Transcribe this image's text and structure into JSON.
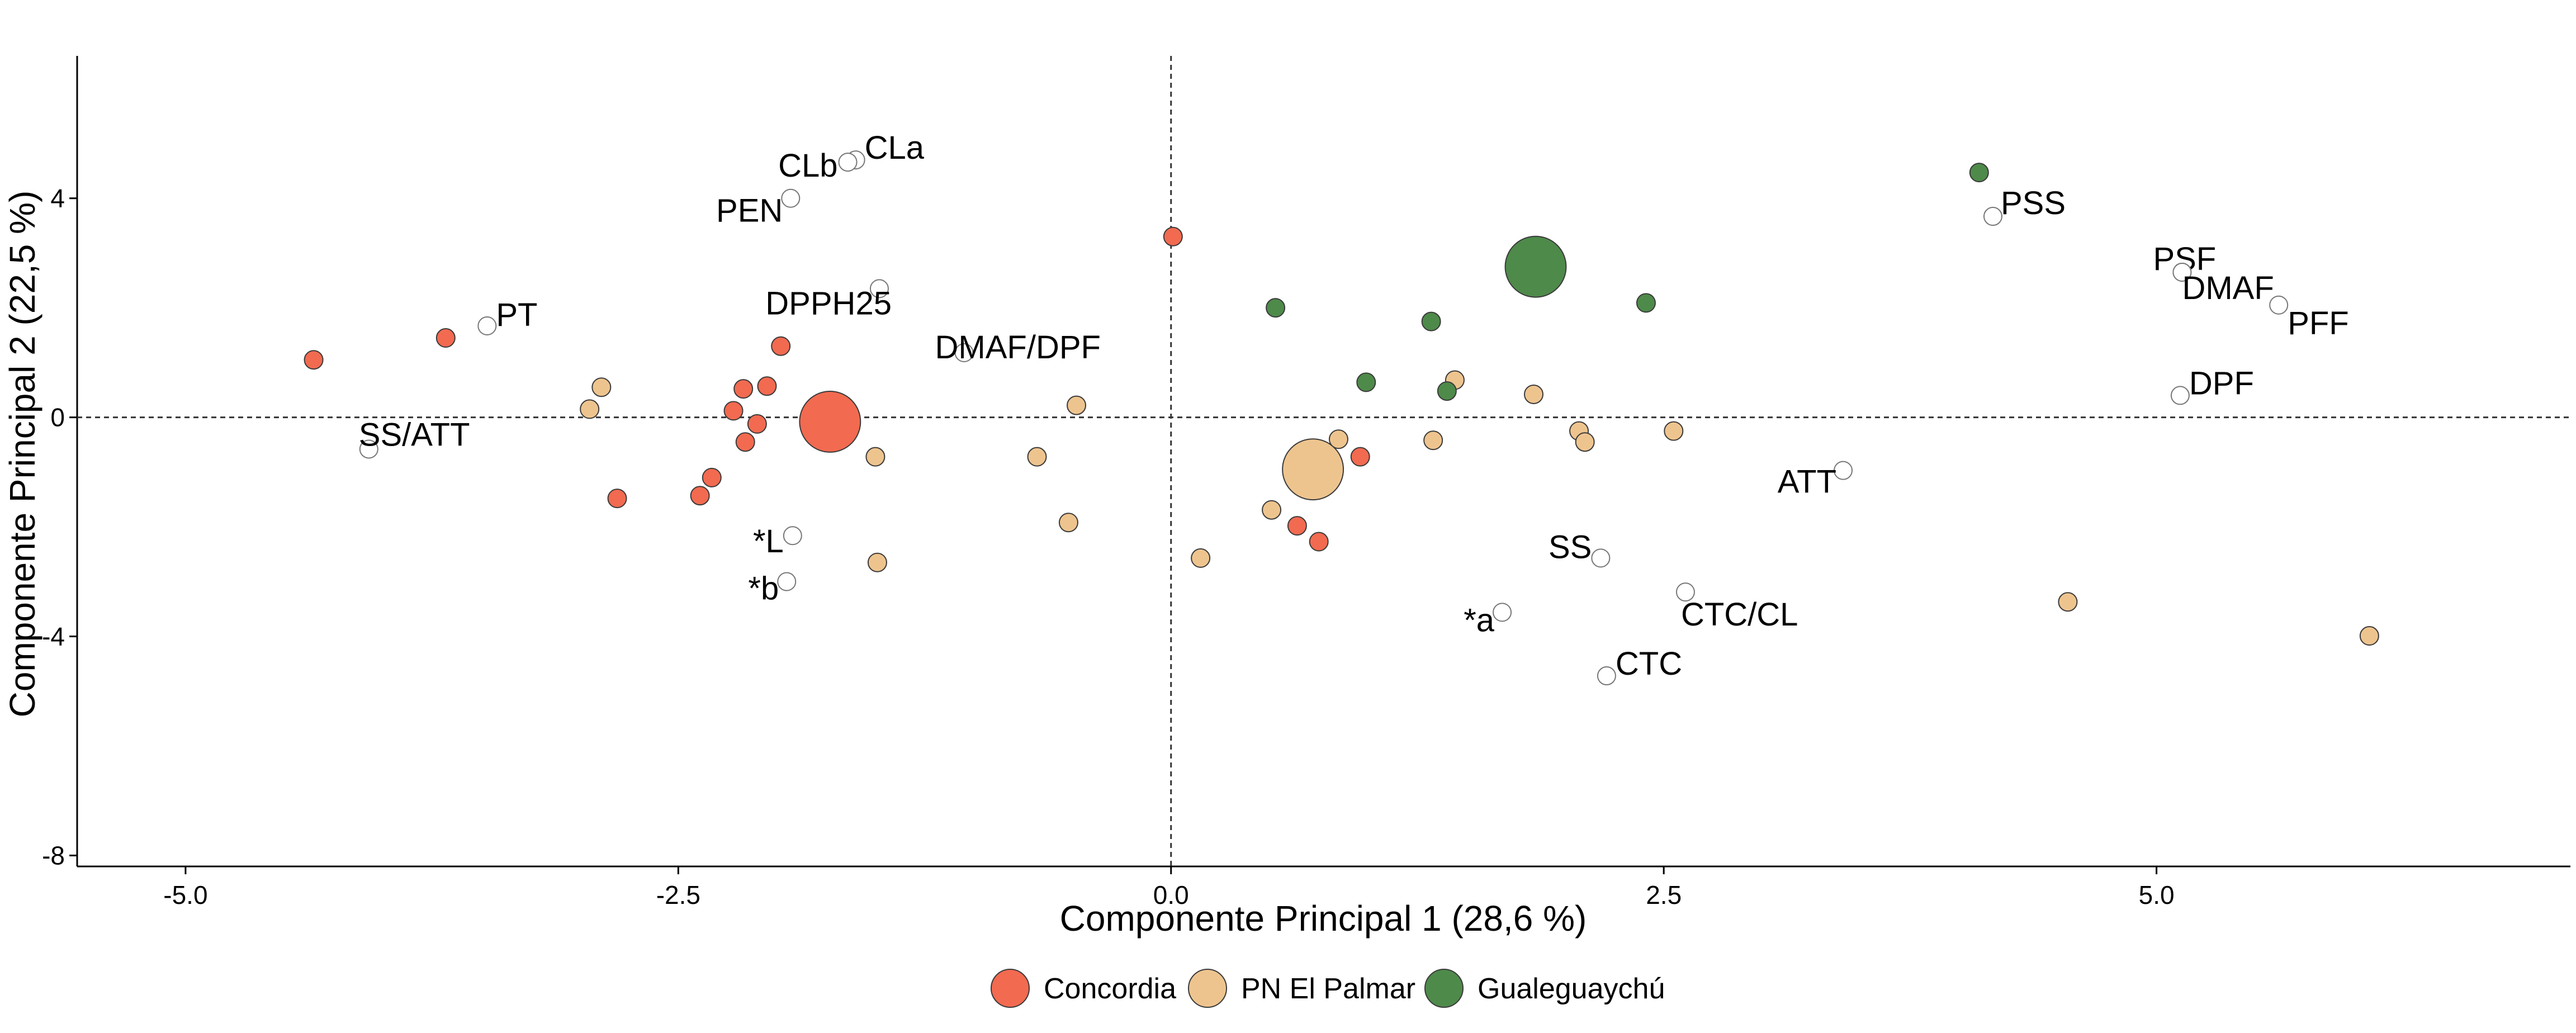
{
  "chart_data": {
    "type": "scatter",
    "title": "",
    "xlabel": "Componente Principal 1 (28,6 %)",
    "ylabel": "Componente Principal 2 (22,5 %)",
    "xlim": [
      -5.55,
      7.1
    ],
    "ylim": [
      -8.2,
      6.6
    ],
    "x_ticks": [
      -5.0,
      -2.5,
      0.0,
      2.5,
      5.0
    ],
    "x_tick_labels": [
      "-5.0",
      "-2.5",
      "0.0",
      "2.5",
      "5.0"
    ],
    "y_ticks": [
      -8,
      -4,
      0,
      4
    ],
    "y_tick_labels": [
      "-8",
      "-4",
      "0",
      "4"
    ],
    "reference_lines": {
      "x": 0,
      "y": 0,
      "style": "dashed"
    },
    "grid": false,
    "legend_position": "bottom",
    "series": [
      {
        "name": "Concordia",
        "color": "#f26a50",
        "points": [
          {
            "x": -4.35,
            "y": 1.05,
            "size": 1
          },
          {
            "x": -3.68,
            "y": 1.45,
            "size": 1
          },
          {
            "x": -2.81,
            "y": -1.48,
            "size": 1
          },
          {
            "x": -2.39,
            "y": -1.43,
            "size": 1
          },
          {
            "x": -2.33,
            "y": -1.1,
            "size": 1
          },
          {
            "x": -2.22,
            "y": 0.12,
            "size": 1
          },
          {
            "x": -2.17,
            "y": 0.52,
            "size": 1
          },
          {
            "x": -2.16,
            "y": -0.45,
            "size": 1
          },
          {
            "x": -2.1,
            "y": -0.12,
            "size": 1
          },
          {
            "x": -2.05,
            "y": 0.57,
            "size": 1
          },
          {
            "x": -1.98,
            "y": 1.3,
            "size": 1
          },
          {
            "x": -1.73,
            "y": -0.08,
            "size": 3.3
          },
          {
            "x": 0.01,
            "y": 3.3,
            "size": 1
          },
          {
            "x": 0.64,
            "y": -1.98,
            "size": 1
          },
          {
            "x": 0.75,
            "y": -2.27,
            "size": 1
          },
          {
            "x": 0.96,
            "y": -0.72,
            "size": 1
          }
        ]
      },
      {
        "name": "PN El Palmar",
        "color": "#eec48e",
        "points": [
          {
            "x": -2.95,
            "y": 0.15,
            "size": 1
          },
          {
            "x": -2.89,
            "y": 0.55,
            "size": 1
          },
          {
            "x": -1.5,
            "y": -0.72,
            "size": 1
          },
          {
            "x": -1.49,
            "y": -2.65,
            "size": 1
          },
          {
            "x": -0.68,
            "y": -0.72,
            "size": 1
          },
          {
            "x": -0.52,
            "y": -1.92,
            "size": 1
          },
          {
            "x": -0.48,
            "y": 0.22,
            "size": 1
          },
          {
            "x": 0.15,
            "y": -2.57,
            "size": 1
          },
          {
            "x": 0.51,
            "y": -1.69,
            "size": 1
          },
          {
            "x": 0.72,
            "y": -0.95,
            "size": 3.3
          },
          {
            "x": 0.85,
            "y": -0.4,
            "size": 1
          },
          {
            "x": 1.33,
            "y": -0.42,
            "size": 1
          },
          {
            "x": 1.44,
            "y": 0.68,
            "size": 1
          },
          {
            "x": 1.84,
            "y": 0.42,
            "size": 1
          },
          {
            "x": 2.07,
            "y": -0.25,
            "size": 1
          },
          {
            "x": 2.1,
            "y": -0.45,
            "size": 1
          },
          {
            "x": 2.55,
            "y": -0.25,
            "size": 1
          },
          {
            "x": 4.55,
            "y": -3.37,
            "size": 1
          },
          {
            "x": 6.08,
            "y": -3.99,
            "size": 1
          }
        ]
      },
      {
        "name": "Gualeguaychú",
        "color": "#4e8a4a",
        "points": [
          {
            "x": 0.53,
            "y": 2.0,
            "size": 1
          },
          {
            "x": 0.99,
            "y": 0.64,
            "size": 1
          },
          {
            "x": 1.32,
            "y": 1.75,
            "size": 1
          },
          {
            "x": 1.4,
            "y": 0.48,
            "size": 1
          },
          {
            "x": 1.85,
            "y": 2.75,
            "size": 3.3
          },
          {
            "x": 2.41,
            "y": 2.09,
            "size": 1
          },
          {
            "x": 4.1,
            "y": 4.47,
            "size": 1
          }
        ]
      }
    ],
    "variables": [
      {
        "label": "CLa",
        "x": -1.6,
        "y": 4.7
      },
      {
        "label": "CLb",
        "x": -1.64,
        "y": 4.66
      },
      {
        "label": "PEN",
        "x": -1.93,
        "y": 4.0
      },
      {
        "label": "PT",
        "x": -3.47,
        "y": 1.67
      },
      {
        "label": "DPPH25",
        "x": -1.48,
        "y": 2.35
      },
      {
        "label": "DMAF/DPF",
        "x": -1.05,
        "y": 1.18
      },
      {
        "label": "SS/ATT",
        "x": -4.07,
        "y": -0.58
      },
      {
        "label": "*L",
        "x": -1.92,
        "y": -2.16
      },
      {
        "label": "*b",
        "x": -1.95,
        "y": -3.0
      },
      {
        "label": "PSS",
        "x": 4.17,
        "y": 3.67
      },
      {
        "label": "PSF",
        "x": 5.13,
        "y": 2.65
      },
      {
        "label": "DMAF",
        "x": 5.13,
        "y": 2.65
      },
      {
        "label": "PFF",
        "x": 5.62,
        "y": 2.05
      },
      {
        "label": "DPF",
        "x": 5.12,
        "y": 0.4
      },
      {
        "label": "ATT",
        "x": 3.41,
        "y": -0.97
      },
      {
        "label": "SS",
        "x": 2.18,
        "y": -2.57
      },
      {
        "label": "CTC/CL",
        "x": 2.61,
        "y": -3.19
      },
      {
        "label": "*a",
        "x": 1.68,
        "y": -3.56
      },
      {
        "label": "CTC",
        "x": 2.21,
        "y": -4.72
      }
    ]
  }
}
